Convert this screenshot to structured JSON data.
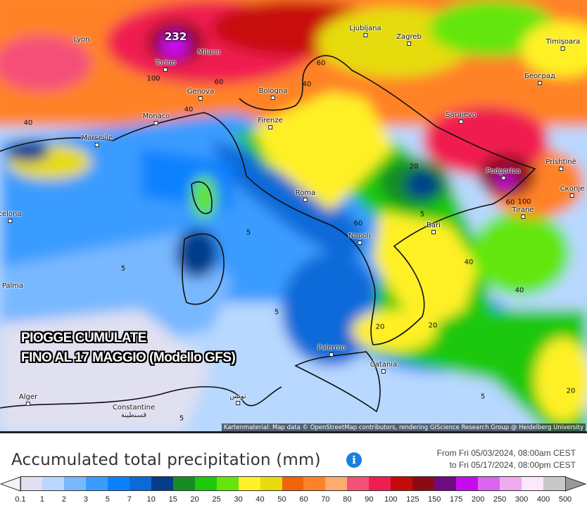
{
  "map": {
    "overlay_line1": "PIOGGE CUMULATE",
    "overlay_line2": "FINO AL 17 MAGGIO (Modello GFS)",
    "max_value_label": "232",
    "attribution": "Kartenmaterial: Map data © OpenStreetMap contributors, rendering GIScience Research Group @ Heidelberg University",
    "cities": [
      "Lyon",
      "Torino",
      "Milano",
      "Genova",
      "Monaco",
      "Marseille",
      "Bologna",
      "Firenze",
      "Ljubljana",
      "Zagreb",
      "Timișoara",
      "Београд",
      "Sarajevo",
      "Podgorica",
      "Prishtinë",
      "Скопје",
      "Tiranë",
      "Roma",
      "Napoli",
      "Bari",
      "Palermo",
      "Catania",
      "Alger",
      "Constantine قسنطينة",
      "تونس",
      "Palma",
      "celona"
    ],
    "contour_labels": [
      "100",
      "60",
      "40",
      "60",
      "40",
      "40",
      "60",
      "100",
      "20",
      "60",
      "40",
      "40",
      "5",
      "5",
      "5",
      "5",
      "20",
      "20",
      "20",
      "5",
      "5"
    ]
  },
  "legend": {
    "title": "Accumulated total precipitation (mm)",
    "info_icon": "i",
    "range_from": "From Fri 05/03/2024, 08:00am CEST",
    "range_to": "to Fri 05/17/2024, 08:00pm CEST",
    "labels": [
      "0.1",
      "1",
      "2",
      "3",
      "5",
      "7",
      "10",
      "15",
      "20",
      "25",
      "30",
      "40",
      "50",
      "60",
      "70",
      "80",
      "90",
      "100",
      "125",
      "150",
      "175",
      "200",
      "250",
      "300",
      "400",
      "500"
    ],
    "colors": [
      "#e0e0f0",
      "#b8d8ff",
      "#78b8ff",
      "#3a9cff",
      "#0a82ff",
      "#0a6ad8",
      "#063c8c",
      "#168c22",
      "#1ec80a",
      "#64e60a",
      "#fff028",
      "#e6dc0a",
      "#f06408",
      "#ff8228",
      "#ffaa6e",
      "#f55078",
      "#f01e50",
      "#c80a0a",
      "#8c0a14",
      "#6e0a82",
      "#c80af0",
      "#dc64f0",
      "#f0aaf0",
      "#fbe8fb",
      "#c8c8c8"
    ]
  }
}
